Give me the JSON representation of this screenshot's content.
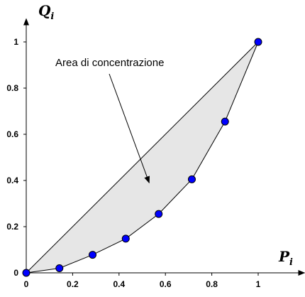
{
  "chart_data": {
    "type": "line",
    "title": "",
    "xlabel": "P",
    "xlabel_sub": "i",
    "ylabel": "Q",
    "ylabel_sub": "i",
    "xlim": [
      0,
      1.2
    ],
    "ylim": [
      0,
      1.1
    ],
    "x_ticks": [
      0,
      0.2,
      0.4,
      0.6,
      0.8,
      1
    ],
    "y_ticks": [
      0,
      0.2,
      0.4,
      0.6,
      0.8,
      1
    ],
    "x_tick_labels": [
      "0",
      "0.2",
      "0.4",
      "0.6",
      "0.8",
      "1"
    ],
    "y_tick_labels": [
      "0",
      "0.2",
      "0.4",
      "0.6",
      "0.8",
      "1"
    ],
    "grid": false,
    "legend": "none",
    "series": [
      {
        "x": [
          0,
          0.143,
          0.286,
          0.429,
          0.571,
          0.714,
          0.857,
          1
        ],
        "y": [
          0,
          0.02,
          0.078,
          0.148,
          0.255,
          0.405,
          0.655,
          1
        ]
      }
    ],
    "reference_line": {
      "x": [
        0,
        1
      ],
      "y": [
        0,
        1
      ]
    },
    "area_fill_color": "#e6e6e6",
    "point_color": "#0000ff",
    "annotation": {
      "text": "Area di concentrazione",
      "arrow_to": [
        0.53,
        0.39
      ]
    }
  }
}
